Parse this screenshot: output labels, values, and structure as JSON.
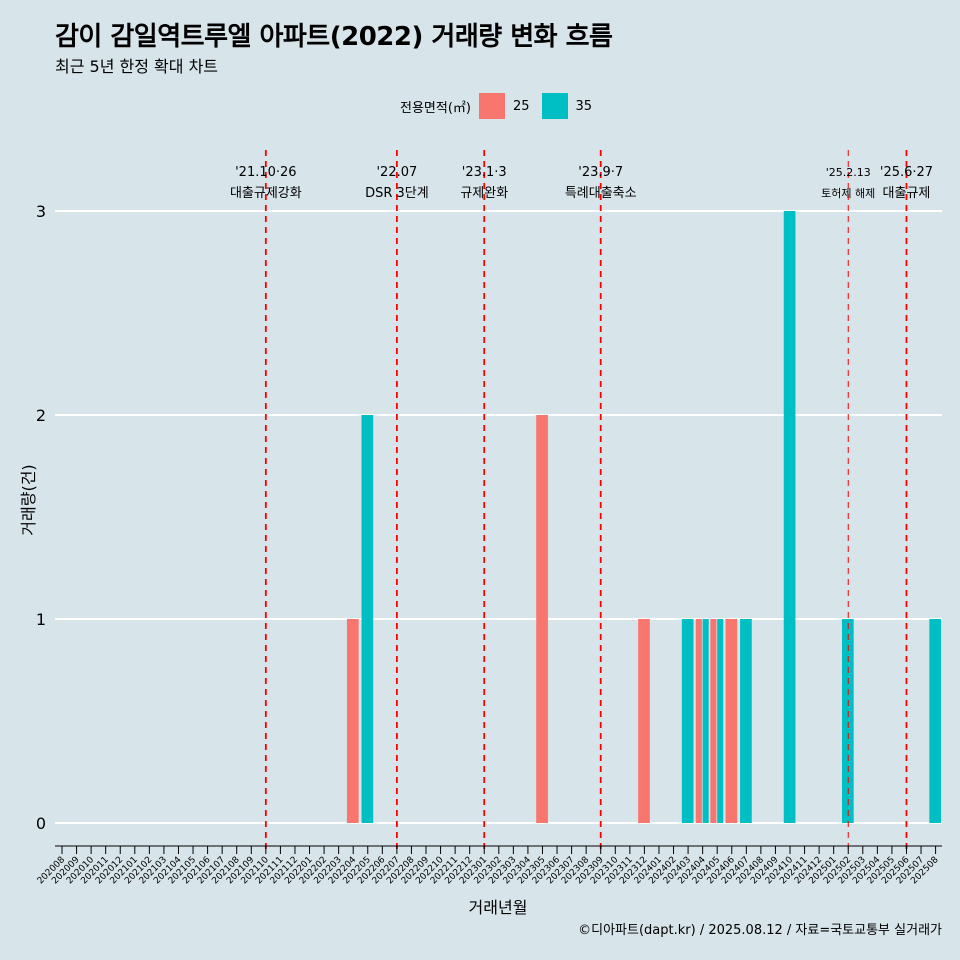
{
  "header": {
    "title": "감이 감일역트루엘 아파트(2022) 거래량 변화 흐름",
    "subtitle": "최근 5년 한정 확대 차트"
  },
  "legend": {
    "title": "전용면적(㎡)",
    "items": [
      {
        "label": "25",
        "color": "#f8766d"
      },
      {
        "label": "35",
        "color": "#00bfc4"
      }
    ]
  },
  "caption": "©디아파트(dapt.kr) / 2025.08.12 / 자료=국토교통부 실거래가",
  "chart_data": {
    "type": "bar",
    "xlabel": "거래년월",
    "ylabel": "거래량(건)",
    "ylim": [
      0,
      3
    ],
    "yticks": [
      0,
      1,
      2,
      3
    ],
    "grid": true,
    "legend_position": "top",
    "categories": [
      "202008",
      "202009",
      "202010",
      "202011",
      "202012",
      "202101",
      "202102",
      "202103",
      "202104",
      "202105",
      "202106",
      "202107",
      "202108",
      "202109",
      "202110",
      "202111",
      "202112",
      "202201",
      "202202",
      "202203",
      "202204",
      "202205",
      "202206",
      "202207",
      "202208",
      "202209",
      "202210",
      "202211",
      "202212",
      "202301",
      "202302",
      "202303",
      "202304",
      "202305",
      "202306",
      "202307",
      "202308",
      "202309",
      "202310",
      "202311",
      "202312",
      "202401",
      "202402",
      "202403",
      "202404",
      "202405",
      "202406",
      "202407",
      "202408",
      "202409",
      "202410",
      "202411",
      "202412",
      "202501",
      "202502",
      "202503",
      "202504",
      "202505",
      "202506",
      "202507",
      "202508"
    ],
    "series": [
      {
        "name": "25",
        "color": "#f8766d",
        "points": [
          {
            "x": "202204",
            "y": 1
          },
          {
            "x": "202305",
            "y": 2
          },
          {
            "x": "202312",
            "y": 1
          },
          {
            "x": "202404",
            "y": 1
          },
          {
            "x": "202405",
            "y": 1
          },
          {
            "x": "202406",
            "y": 1
          }
        ]
      },
      {
        "name": "35",
        "color": "#00bfc4",
        "points": [
          {
            "x": "202205",
            "y": 2
          },
          {
            "x": "202403",
            "y": 1
          },
          {
            "x": "202404",
            "y": 1
          },
          {
            "x": "202405",
            "y": 1
          },
          {
            "x": "202407",
            "y": 1
          },
          {
            "x": "202410",
            "y": 3
          },
          {
            "x": "202502",
            "y": 1
          },
          {
            "x": "202508",
            "y": 1
          }
        ]
      }
    ],
    "annotations": [
      {
        "x": "202110",
        "date": "'21.10·26",
        "label": "대출규제강화"
      },
      {
        "x": "202207",
        "date": "'22.07",
        "label": "DSR 3단계"
      },
      {
        "x": "202301",
        "date": "'23.1·3",
        "label": "규제완화"
      },
      {
        "x": "202309",
        "date": "'23.9·7",
        "label": "특례대출축소"
      },
      {
        "x": "202502",
        "date": "'25.2.13",
        "label": "토허제 해제"
      },
      {
        "x": "202506",
        "date": "'25.6·27",
        "label": "대출규제"
      }
    ]
  }
}
